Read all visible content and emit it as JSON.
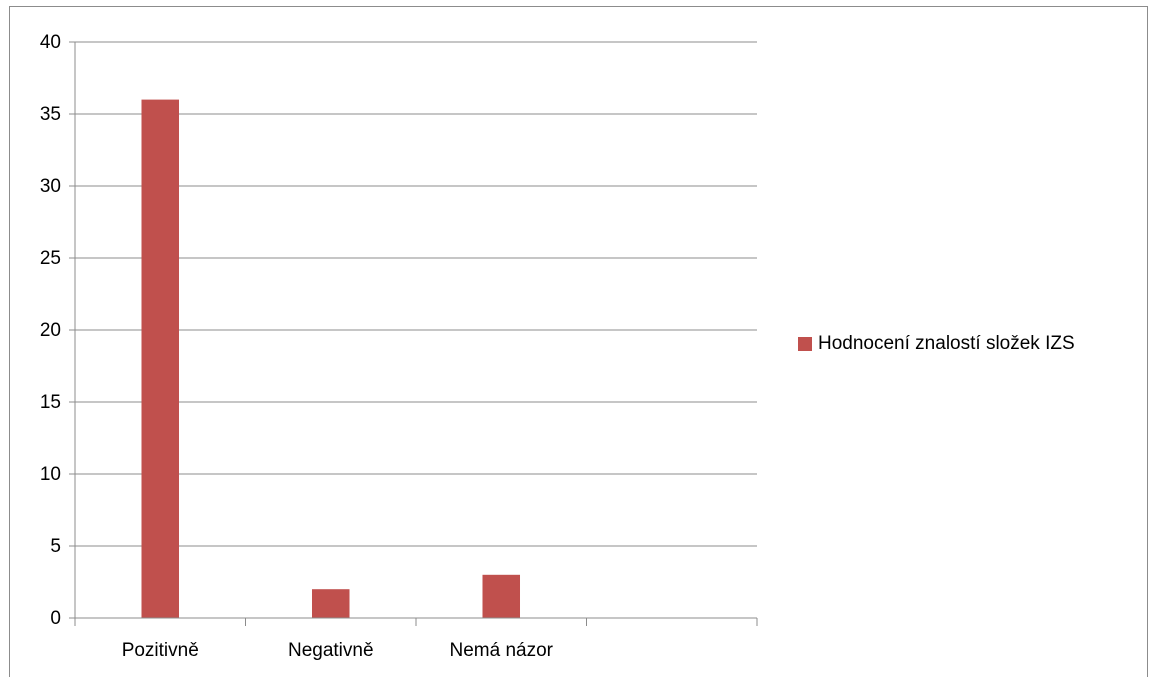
{
  "chart_data": {
    "type": "bar",
    "categories": [
      "Pozitivně",
      "Negativně",
      "Nemá názor",
      ""
    ],
    "series": [
      {
        "name": "Hodnocení znalostí složek IZS",
        "values": [
          36,
          2,
          3,
          null
        ],
        "color": "#c0504d"
      }
    ],
    "title": "",
    "xlabel": "",
    "ylabel": "",
    "ylim": [
      0,
      40
    ],
    "yticks": [
      0,
      5,
      10,
      15,
      20,
      25,
      30,
      35,
      40
    ],
    "grid": true,
    "legend": "right"
  }
}
